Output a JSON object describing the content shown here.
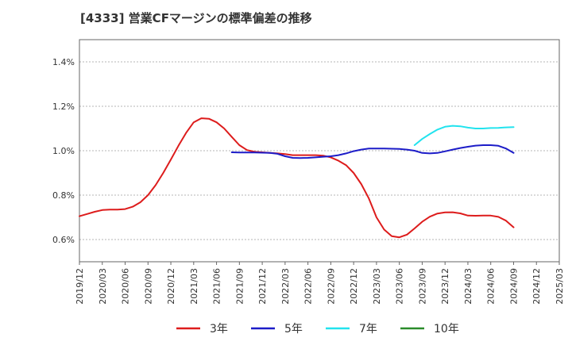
{
  "chart_data": {
    "type": "line",
    "title": "[4333]  営業CFマージンの標準偏差の推移",
    "xlabel": "",
    "ylabel": "",
    "grid": "horizontal dashed",
    "legend_position": "bottom",
    "x_ticks": [
      "2019/12",
      "2020/03",
      "2020/06",
      "2020/09",
      "2020/12",
      "2021/03",
      "2021/06",
      "2021/09",
      "2021/12",
      "2022/03",
      "2022/06",
      "2022/09",
      "2022/12",
      "2023/03",
      "2023/06",
      "2023/09",
      "2023/12",
      "2024/03",
      "2024/06",
      "2024/09",
      "2024/12",
      "2025/03"
    ],
    "y_ticks": [
      "0.6%",
      "0.8%",
      "1.0%",
      "1.2%",
      "1.4%"
    ],
    "ylim": [
      0.5,
      1.5
    ],
    "series": [
      {
        "name": "3年",
        "color": "#dd1c1c",
        "data": [
          [
            "2019/12",
            0.705
          ],
          [
            "2020/01",
            0.715
          ],
          [
            "2020/02",
            0.725
          ],
          [
            "2020/03",
            0.733
          ],
          [
            "2020/04",
            0.735
          ],
          [
            "2020/05",
            0.735
          ],
          [
            "2020/06",
            0.737
          ],
          [
            "2020/07",
            0.748
          ],
          [
            "2020/08",
            0.768
          ],
          [
            "2020/09",
            0.8
          ],
          [
            "2020/10",
            0.845
          ],
          [
            "2020/11",
            0.9
          ],
          [
            "2020/12",
            0.96
          ],
          [
            "2021/01",
            1.022
          ],
          [
            "2021/02",
            1.08
          ],
          [
            "2021/03",
            1.128
          ],
          [
            "2021/04",
            1.146
          ],
          [
            "2021/05",
            1.144
          ],
          [
            "2021/06",
            1.128
          ],
          [
            "2021/07",
            1.1
          ],
          [
            "2021/08",
            1.062
          ],
          [
            "2021/09",
            1.025
          ],
          [
            "2021/10",
            1.003
          ],
          [
            "2021/11",
            0.995
          ],
          [
            "2021/12",
            0.993
          ],
          [
            "2022/01",
            0.99
          ],
          [
            "2022/02",
            0.988
          ],
          [
            "2022/03",
            0.985
          ],
          [
            "2022/04",
            0.98
          ],
          [
            "2022/05",
            0.98
          ],
          [
            "2022/06",
            0.98
          ],
          [
            "2022/07",
            0.98
          ],
          [
            "2022/08",
            0.978
          ],
          [
            "2022/09",
            0.97
          ],
          [
            "2022/10",
            0.955
          ],
          [
            "2022/11",
            0.935
          ],
          [
            "2022/12",
            0.9
          ],
          [
            "2023/01",
            0.85
          ],
          [
            "2023/02",
            0.785
          ],
          [
            "2023/03",
            0.7
          ],
          [
            "2023/04",
            0.645
          ],
          [
            "2023/05",
            0.615
          ],
          [
            "2023/06",
            0.61
          ],
          [
            "2023/07",
            0.622
          ],
          [
            "2023/08",
            0.65
          ],
          [
            "2023/09",
            0.68
          ],
          [
            "2023/10",
            0.703
          ],
          [
            "2023/11",
            0.717
          ],
          [
            "2023/12",
            0.722
          ],
          [
            "2024/01",
            0.723
          ],
          [
            "2024/02",
            0.718
          ],
          [
            "2024/03",
            0.708
          ],
          [
            "2024/04",
            0.707
          ],
          [
            "2024/05",
            0.708
          ],
          [
            "2024/06",
            0.708
          ],
          [
            "2024/07",
            0.702
          ],
          [
            "2024/08",
            0.685
          ],
          [
            "2024/09",
            0.655
          ]
        ]
      },
      {
        "name": "5年",
        "color": "#1c1cc8",
        "data": [
          [
            "2021/08",
            0.993
          ],
          [
            "2021/09",
            0.992
          ],
          [
            "2021/10",
            0.992
          ],
          [
            "2021/11",
            0.992
          ],
          [
            "2021/12",
            0.991
          ],
          [
            "2022/01",
            0.99
          ],
          [
            "2022/02",
            0.986
          ],
          [
            "2022/03",
            0.975
          ],
          [
            "2022/04",
            0.968
          ],
          [
            "2022/05",
            0.967
          ],
          [
            "2022/06",
            0.968
          ],
          [
            "2022/07",
            0.97
          ],
          [
            "2022/08",
            0.973
          ],
          [
            "2022/09",
            0.975
          ],
          [
            "2022/10",
            0.98
          ],
          [
            "2022/11",
            0.988
          ],
          [
            "2022/12",
            0.998
          ],
          [
            "2023/01",
            1.005
          ],
          [
            "2023/02",
            1.01
          ],
          [
            "2023/03",
            1.01
          ],
          [
            "2023/04",
            1.01
          ],
          [
            "2023/05",
            1.009
          ],
          [
            "2023/06",
            1.008
          ],
          [
            "2023/07",
            1.005
          ],
          [
            "2023/08",
            1.0
          ],
          [
            "2023/09",
            0.99
          ],
          [
            "2023/10",
            0.988
          ],
          [
            "2023/11",
            0.99
          ],
          [
            "2023/12",
            0.997
          ],
          [
            "2024/01",
            1.005
          ],
          [
            "2024/02",
            1.012
          ],
          [
            "2024/03",
            1.018
          ],
          [
            "2024/04",
            1.023
          ],
          [
            "2024/05",
            1.025
          ],
          [
            "2024/06",
            1.025
          ],
          [
            "2024/07",
            1.022
          ],
          [
            "2024/08",
            1.01
          ],
          [
            "2024/09",
            0.99
          ]
        ]
      },
      {
        "name": "7年",
        "color": "#22e3ee",
        "data": [
          [
            "2023/08",
            1.025
          ],
          [
            "2023/09",
            1.053
          ],
          [
            "2023/10",
            1.075
          ],
          [
            "2023/11",
            1.095
          ],
          [
            "2023/12",
            1.108
          ],
          [
            "2024/01",
            1.112
          ],
          [
            "2024/02",
            1.11
          ],
          [
            "2024/03",
            1.104
          ],
          [
            "2024/04",
            1.1
          ],
          [
            "2024/05",
            1.1
          ],
          [
            "2024/06",
            1.102
          ],
          [
            "2024/07",
            1.103
          ],
          [
            "2024/08",
            1.105
          ],
          [
            "2024/09",
            1.106
          ]
        ]
      },
      {
        "name": "10年",
        "color": "#2a8c2a",
        "data": []
      }
    ]
  }
}
